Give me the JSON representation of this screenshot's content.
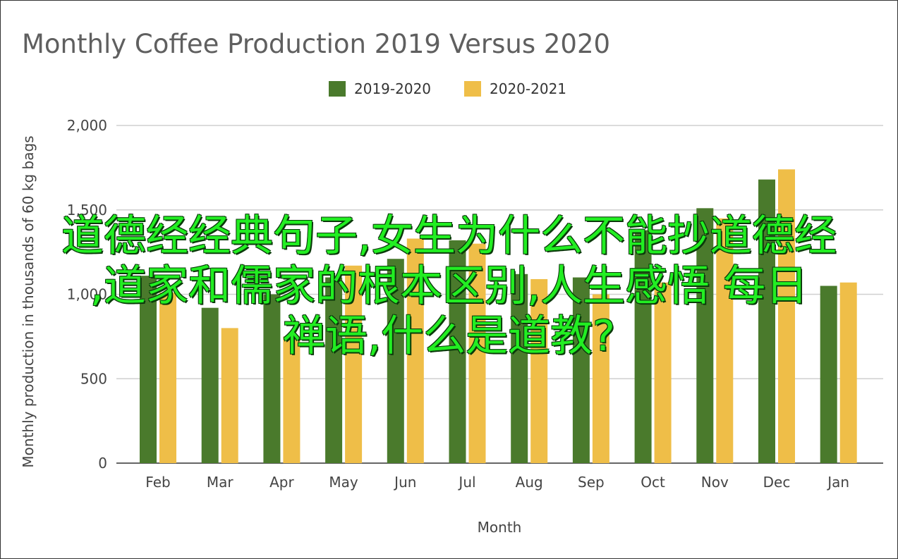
{
  "overlay": {
    "line1": "道德经经典句子,女生为什么不能抄道德经",
    "line2": ",道家和儒家的根本区别,人生感悟 每日",
    "line3": "禅语,什么是道教?"
  },
  "chart_data": {
    "type": "bar",
    "title": "Monthly Coffee Production 2019 Versus 2020",
    "xlabel": "Month",
    "ylabel": "Monthly production in thousands of 60 kg bags",
    "ylim": [
      0,
      2000
    ],
    "yticks": [
      0,
      500,
      1000,
      1500,
      2000
    ],
    "ytick_labels": [
      "0",
      "500",
      "1,000",
      "1,500",
      "2,000"
    ],
    "grid": true,
    "legend_position": "top",
    "categories": [
      "Feb",
      "Mar",
      "Apr",
      "May",
      "Jun",
      "Jul",
      "Aug",
      "Sep",
      "Oct",
      "Nov",
      "Dec",
      "Jan"
    ],
    "series": [
      {
        "name": "2019-2020",
        "color": "#4a7a2c",
        "values": [
          1110,
          920,
          1000,
          1100,
          1210,
          1320,
          1120,
          1100,
          1380,
          1510,
          1680,
          1050
        ]
      },
      {
        "name": "2020-2021",
        "color": "#efbe48",
        "values": [
          1010,
          800,
          750,
          1170,
          1330,
          1300,
          1090,
          1000,
          1070,
          1450,
          1740,
          1070
        ]
      }
    ]
  }
}
